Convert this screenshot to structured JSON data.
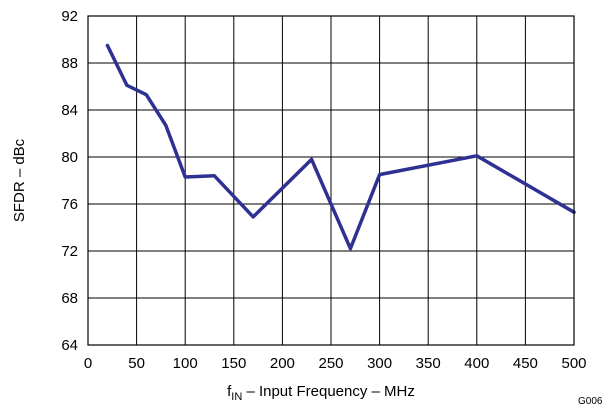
{
  "chart_data": {
    "type": "line",
    "title": "",
    "xlabel": {
      "main": "f",
      "sub": "IN",
      "rest": " – Input Frequency – MHz"
    },
    "ylabel": "SFDR – dBc",
    "figure_id": "G006",
    "xlim": [
      0,
      500
    ],
    "ylim": [
      64,
      92
    ],
    "xticks": [
      "0",
      "50",
      "100",
      "150",
      "200",
      "250",
      "300",
      "350",
      "400",
      "450",
      "500"
    ],
    "yticks": [
      "64",
      "68",
      "72",
      "76",
      "80",
      "84",
      "88",
      "92"
    ],
    "xtick_values": [
      0,
      50,
      100,
      150,
      200,
      250,
      300,
      350,
      400,
      450,
      500
    ],
    "ytick_values": [
      64,
      68,
      72,
      76,
      80,
      84,
      88,
      92
    ],
    "grid": true,
    "series": [
      {
        "color": "#2e3191",
        "x": [
          20,
          40,
          60,
          80,
          100,
          130,
          170,
          230,
          270,
          300,
          400,
          500
        ],
        "y": [
          89.5,
          86.1,
          85.3,
          82.7,
          78.3,
          78.4,
          74.9,
          79.8,
          72.2,
          78.5,
          80.1,
          75.3
        ]
      }
    ]
  }
}
